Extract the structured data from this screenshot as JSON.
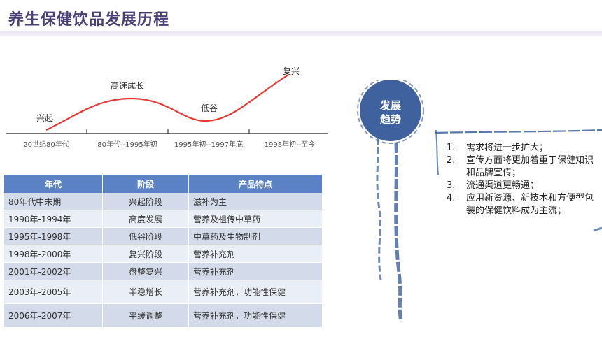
{
  "title": "养生保健饮品发展历程",
  "curve": {
    "phases": [
      "兴起",
      "高速成长",
      "低谷",
      "复兴"
    ],
    "periods": [
      "20世纪80年代",
      "80年代--1995年初",
      "1995年初--1997年底",
      "1998年初--至今"
    ]
  },
  "table": {
    "headers": [
      "年代",
      "阶段",
      "产品特点"
    ],
    "rows": [
      [
        "80年代中末期",
        "兴起阶段",
        "滋补为主"
      ],
      [
        "1990年-1994年",
        "高度发展",
        "营养及祖传中草药"
      ],
      [
        "1995年-1998年",
        "低谷阶段",
        "中草药及生物制剂"
      ],
      [
        "1998年-2000年",
        "复兴阶段",
        "营养补充剂"
      ],
      [
        "2001年-2002年",
        "盘整复兴",
        "营养补充剂"
      ],
      [
        "2003年-2005年",
        "半稳增长",
        "营养补充剂，功能性保健"
      ],
      [
        "2006年-2007年",
        "平缓调整",
        "营养补充剂，功能性保健"
      ]
    ]
  },
  "trend": {
    "badge_line1": "发展",
    "badge_line2": "趋势",
    "items": [
      {
        "num": "1.",
        "text": "需求将进一步扩大；"
      },
      {
        "num": "2.",
        "text": "宣传方面将更加着重于保健知识和品牌宣传；"
      },
      {
        "num": "3.",
        "text": "流通渠道更畅通；"
      },
      {
        "num": "4.",
        "text": "应用新资源、新技术和方便型包装的保健饮料成为主流；"
      }
    ]
  },
  "colors": {
    "title": "#4b3f78",
    "curve": "#e53935",
    "table_header": "#5a82c4",
    "ink": "#2f5597"
  }
}
